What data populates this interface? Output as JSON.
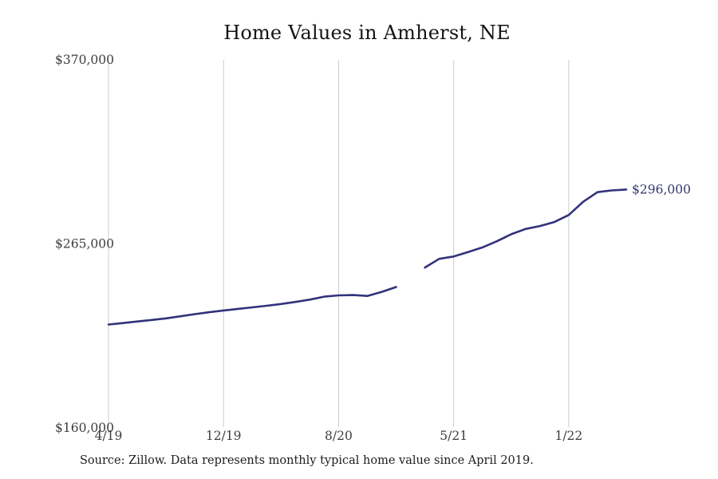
{
  "page": {
    "title": "Home Values in Amherst, NE",
    "source_note": "Source: Zillow. Data represents monthly typical home value since April 2019."
  },
  "chart_data": {
    "type": "line",
    "title": "Home Values in Amherst, NE",
    "xlabel": "",
    "ylabel": "",
    "ylim": [
      160000,
      370000
    ],
    "grid": "vertical-only",
    "legend": "none",
    "line_color": "#32327c",
    "gridline_color": "#cccccc",
    "tick_label_color": "#3d3d3d",
    "end_label": "$296,000",
    "end_label_color": "#35356f",
    "y_ticks": [
      {
        "value": 370000,
        "label": "$370,000"
      },
      {
        "value": 265000,
        "label": "$265,000"
      },
      {
        "value": 160000,
        "label": "$160,000"
      }
    ],
    "x_ticks": [
      "4/19",
      "12/19",
      "8/20",
      "5/21",
      "1/22"
    ],
    "series": [
      {
        "name": "Monthly typical home value",
        "months": [
          "4/19",
          "5/19",
          "6/19",
          "7/19",
          "8/19",
          "9/19",
          "10/19",
          "11/19",
          "12/19",
          "1/20",
          "2/20",
          "3/20",
          "4/20",
          "5/20",
          "6/20",
          "7/20",
          "8/20",
          "9/20",
          "10/20",
          "11/20",
          "12/20",
          "2/21",
          "3/21",
          "4/21",
          "5/21",
          "6/21",
          "7/21",
          "8/21",
          "9/21",
          "10/21",
          "11/21",
          "12/21",
          "1/22",
          "2/22",
          "3/22",
          "4/22",
          "5/22"
        ],
        "values": [
          219000,
          219800,
          220700,
          221600,
          222500,
          223700,
          224900,
          226000,
          227000,
          227900,
          228800,
          229700,
          230700,
          231900,
          233200,
          234900,
          235600,
          235800,
          235300,
          237600,
          240400,
          null,
          251500,
          256500,
          257800,
          260300,
          263000,
          266500,
          270500,
          273500,
          275200,
          277500,
          281500,
          289000,
          294500,
          295500,
          296000
        ]
      }
    ]
  }
}
